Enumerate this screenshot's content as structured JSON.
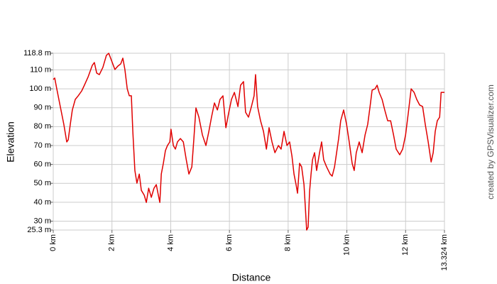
{
  "chart_data": {
    "type": "line",
    "x_label": "Distance",
    "y_label": "Elevation",
    "credit": "created by GPSVisualizer.com",
    "color": "#e00000",
    "grid": true,
    "xlim": [
      0,
      13.324
    ],
    "ylim": [
      25.3,
      118.8
    ],
    "xticks": [
      {
        "value": 0,
        "label": "0 km"
      },
      {
        "value": 2,
        "label": "2 km"
      },
      {
        "value": 4,
        "label": "4 km"
      },
      {
        "value": 6,
        "label": "6 km"
      },
      {
        "value": 8,
        "label": "8 km"
      },
      {
        "value": 10,
        "label": "10 km"
      },
      {
        "value": 12,
        "label": "12 km"
      },
      {
        "value": 13.324,
        "label": "13.324 km"
      }
    ],
    "yticks": [
      {
        "value": 25.3,
        "label": "25.3 m"
      },
      {
        "value": 30,
        "label": "30 m"
      },
      {
        "value": 40,
        "label": "40 m"
      },
      {
        "value": 50,
        "label": "50 m"
      },
      {
        "value": 60,
        "label": "60 m"
      },
      {
        "value": 70,
        "label": "70 m"
      },
      {
        "value": 80,
        "label": "80 m"
      },
      {
        "value": 90,
        "label": "90 m"
      },
      {
        "value": 100,
        "label": "100 m"
      },
      {
        "value": 110,
        "label": "110 m"
      },
      {
        "value": 118.8,
        "label": "118.8 m"
      }
    ],
    "x": [
      0,
      0.05,
      0.12,
      0.24,
      0.36,
      0.46,
      0.51,
      0.58,
      0.65,
      0.75,
      0.85,
      0.97,
      1.06,
      1.19,
      1.33,
      1.4,
      1.48,
      1.57,
      1.69,
      1.81,
      1.89,
      2.01,
      2.1,
      2.2,
      2.3,
      2.37,
      2.44,
      2.52,
      2.59,
      2.66,
      2.71,
      2.78,
      2.85,
      2.93,
      3.0,
      3.1,
      3.17,
      3.25,
      3.34,
      3.43,
      3.51,
      3.58,
      3.63,
      3.68,
      3.75,
      3.82,
      3.89,
      3.97,
      4.01,
      4.09,
      4.16,
      4.23,
      4.33,
      4.43,
      4.53,
      4.62,
      4.72,
      4.79,
      4.86,
      4.96,
      5.08,
      5.2,
      5.3,
      5.39,
      5.49,
      5.59,
      5.68,
      5.78,
      5.88,
      5.97,
      6.07,
      6.17,
      6.29,
      6.38,
      6.48,
      6.55,
      6.65,
      6.75,
      6.84,
      6.89,
      6.96,
      7.06,
      7.16,
      7.26,
      7.35,
      7.45,
      7.55,
      7.67,
      7.76,
      7.86,
      7.96,
      8.05,
      8.13,
      8.2,
      8.27,
      8.32,
      8.39,
      8.46,
      8.54,
      8.59,
      8.63,
      8.68,
      8.73,
      8.78,
      8.83,
      8.9,
      8.97,
      9.07,
      9.14,
      9.21,
      9.31,
      9.43,
      9.5,
      9.58,
      9.65,
      9.72,
      9.79,
      9.89,
      9.99,
      10.08,
      10.18,
      10.25,
      10.32,
      10.42,
      10.52,
      10.62,
      10.71,
      10.79,
      10.86,
      10.96,
      11.03,
      11.1,
      11.2,
      11.29,
      11.39,
      11.49,
      11.59,
      11.68,
      11.8,
      11.9,
      12.0,
      12.09,
      12.19,
      12.29,
      12.38,
      12.48,
      12.58,
      12.67,
      12.77,
      12.87,
      12.94,
      13.01,
      13.08,
      13.16,
      13.21,
      13.28,
      13.324
    ],
    "values": [
      104.9,
      105.7,
      100,
      90.6,
      81.2,
      71.9,
      73,
      81.2,
      88.8,
      94.4,
      96.3,
      98.9,
      101.9,
      106.4,
      112.4,
      113.9,
      108.3,
      107.5,
      111.3,
      117.7,
      118.8,
      113.9,
      110.2,
      112,
      113.2,
      116.2,
      110.2,
      100,
      96.3,
      96.3,
      77.5,
      56.8,
      50.1,
      54.9,
      46.3,
      43.7,
      39.9,
      47.4,
      42.6,
      47.4,
      49.3,
      43.7,
      39.9,
      54.9,
      60.6,
      67.3,
      70,
      71.9,
      78.6,
      70,
      68.1,
      71.9,
      73.7,
      71.9,
      62.5,
      54.9,
      58.7,
      73.7,
      89.9,
      85,
      75.6,
      70,
      77.5,
      85,
      92.5,
      88.8,
      94.4,
      96.3,
      79.4,
      86.9,
      94.4,
      98.1,
      90.6,
      101.9,
      103.8,
      87.6,
      85,
      90.6,
      96.3,
      107.5,
      90.6,
      83.1,
      77.5,
      68.1,
      79.4,
      71.9,
      66.2,
      70,
      68.1,
      77.5,
      70,
      71.9,
      64.4,
      54.9,
      49.3,
      44.8,
      60.6,
      58.7,
      49.3,
      36.2,
      25.3,
      26.8,
      45.6,
      54.9,
      62.5,
      66.2,
      56.8,
      66.2,
      71.9,
      62.5,
      58.7,
      54.9,
      53.8,
      58.7,
      66.2,
      73.7,
      83.1,
      88.8,
      81.2,
      71.9,
      60.6,
      56.8,
      66.2,
      71.9,
      66.2,
      75.6,
      81.2,
      90.6,
      99.3,
      100,
      101.9,
      98.1,
      94.4,
      88.8,
      83.1,
      83.1,
      75.6,
      68.1,
      65.1,
      68.1,
      75.6,
      86.9,
      100,
      98.1,
      94.4,
      91.4,
      90.6,
      81.2,
      71.9,
      61.3,
      66.2,
      77.5,
      83.1,
      85,
      98.1,
      98.1,
      98.1
    ]
  }
}
